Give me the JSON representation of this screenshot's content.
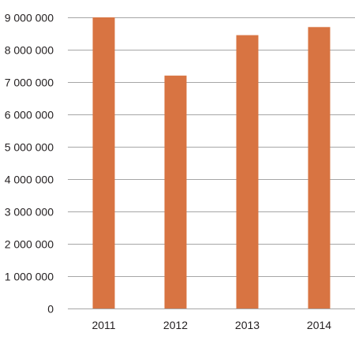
{
  "chart_data": {
    "type": "bar",
    "title": "",
    "xlabel": "",
    "ylabel": "",
    "categories": [
      "2011",
      "2012",
      "2013",
      "2014"
    ],
    "values": [
      9000000,
      7200000,
      8450000,
      8700000
    ],
    "ylim": [
      0,
      9000000
    ],
    "y_ticks": [
      0,
      1000000,
      2000000,
      3000000,
      4000000,
      5000000,
      6000000,
      7000000,
      8000000,
      9000000
    ],
    "y_tick_labels": [
      "0",
      "1 000 000",
      "2 000 000",
      "3 000 000",
      "4 000 000",
      "5 000 000",
      "6 000 000",
      "7 000 000",
      "8 000 000",
      "9 000 000"
    ],
    "grid": true,
    "legend": "none",
    "bar_color": "#d87442",
    "grid_color": "#a6a6a6"
  }
}
